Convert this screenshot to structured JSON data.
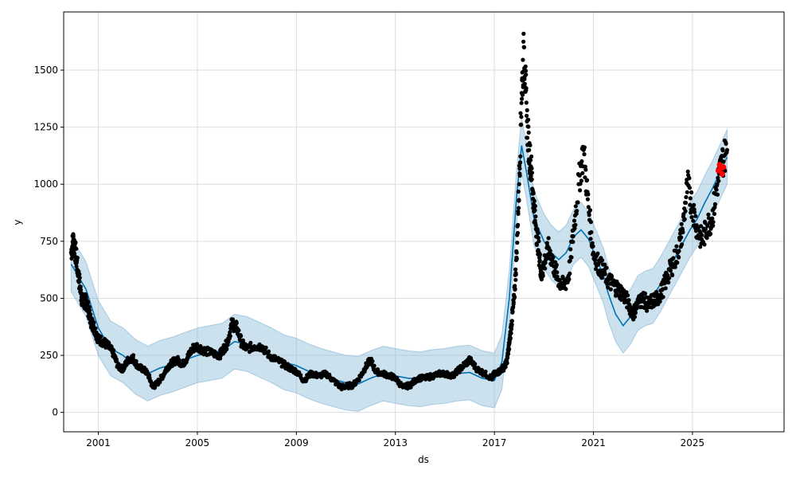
{
  "chart_data": {
    "type": "scatter",
    "xlabel": "ds",
    "ylabel": "y",
    "xlim": [
      1999.6,
      2028.7
    ],
    "ylim": [
      -85,
      1755
    ],
    "grid": true,
    "x_ticks": [
      2001,
      2005,
      2009,
      2013,
      2017,
      2021,
      2025
    ],
    "x_tick_labels": [
      "2001",
      "2005",
      "2009",
      "2013",
      "2017",
      "2021",
      "2025"
    ],
    "y_ticks": [
      0,
      250,
      500,
      750,
      1000,
      1250,
      1500
    ],
    "y_tick_labels": [
      "0",
      "250",
      "500",
      "750",
      "1000",
      "1250",
      "1500"
    ],
    "colors": {
      "observed": "#000000",
      "forecast_line": "#0072B2",
      "interval_fill": "#7FB3D5",
      "recent_points": "#FF0000",
      "grid": "#dddddd"
    },
    "series": [
      {
        "role": "observed",
        "x": [
          1999.9,
          2000.0,
          2000.1,
          2000.2,
          2000.3,
          2000.4,
          2000.5,
          2000.6,
          2000.7,
          2000.8,
          2000.9,
          2001.0,
          2001.2,
          2001.4,
          2001.6,
          2001.8,
          2002.0,
          2002.2,
          2002.4,
          2002.6,
          2002.8,
          2003.0,
          2003.2,
          2003.4,
          2003.6,
          2003.8,
          2004.0,
          2004.2,
          2004.4,
          2004.6,
          2004.8,
          2005.0,
          2005.3,
          2005.6,
          2005.9,
          2006.0,
          2006.2,
          2006.4,
          2006.6,
          2006.8,
          2007.0,
          2007.3,
          2007.6,
          2007.9,
          2008.2,
          2008.5,
          2008.8,
          2009.0,
          2009.3,
          2009.6,
          2009.9,
          2010.2,
          2010.5,
          2010.8,
          2011.0,
          2011.3,
          2011.6,
          2011.8,
          2012.0,
          2012.2,
          2012.5,
          2012.8,
          2013.0,
          2013.3,
          2013.6,
          2013.9,
          2014.2,
          2014.5,
          2014.8,
          2015.0,
          2015.3,
          2015.5,
          2015.8,
          2016.0,
          2016.3,
          2016.6,
          2016.9,
          2017.0,
          2017.2,
          2017.4,
          2017.5,
          2017.6,
          2017.7,
          2017.8,
          2017.9,
          2018.0,
          2018.1,
          2018.2,
          2018.3,
          2018.4,
          2018.5,
          2018.6,
          2018.7,
          2018.8,
          2018.9,
          2019.0,
          2019.2,
          2019.4,
          2019.6,
          2019.8,
          2020.0,
          2020.2,
          2020.4,
          2020.6,
          2020.8,
          2021.0,
          2021.2,
          2021.4,
          2021.6,
          2021.8,
          2022.0,
          2022.2,
          2022.4,
          2022.6,
          2022.8,
          2023.0,
          2023.2,
          2023.4,
          2023.6,
          2023.8,
          2024.0,
          2024.2,
          2024.4,
          2024.6,
          2024.8,
          2025.0,
          2025.2,
          2025.4,
          2025.6,
          2025.8,
          2026.0,
          2026.2,
          2026.4
        ],
        "y": [
          700,
          760,
          680,
          600,
          520,
          470,
          490,
          450,
          400,
          380,
          350,
          320,
          310,
          290,
          260,
          200,
          190,
          230,
          240,
          200,
          190,
          170,
          110,
          130,
          160,
          200,
          220,
          230,
          210,
          240,
          280,
          290,
          270,
          260,
          250,
          270,
          300,
          390,
          370,
          300,
          280,
          290,
          290,
          250,
          230,
          210,
          190,
          180,
          140,
          170,
          160,
          170,
          140,
          110,
          115,
          120,
          160,
          200,
          230,
          180,
          170,
          160,
          150,
          110,
          120,
          150,
          150,
          160,
          170,
          170,
          160,
          180,
          210,
          230,
          190,
          170,
          150,
          170,
          180,
          200,
          220,
          300,
          400,
          500,
          700,
          1000,
          1400,
          1600,
          1300,
          1150,
          1050,
          900,
          800,
          700,
          600,
          650,
          720,
          640,
          580,
          550,
          600,
          800,
          1000,
          1150,
          900,
          700,
          650,
          620,
          580,
          560,
          540,
          520,
          480,
          430,
          480,
          500,
          470,
          490,
          500,
          540,
          600,
          650,
          700,
          800,
          1000,
          900,
          800,
          750,
          820,
          850,
          1000,
          1100,
          1150
        ]
      },
      {
        "role": "forecast",
        "x": [
          1999.9,
          2000.5,
          2001.0,
          2001.5,
          2002.0,
          2002.5,
          2003.0,
          2003.5,
          2004.0,
          2004.5,
          2005.0,
          2005.5,
          2006.0,
          2006.5,
          2007.0,
          2007.5,
          2008.0,
          2008.5,
          2009.0,
          2009.5,
          2010.0,
          2010.5,
          2011.0,
          2011.5,
          2012.0,
          2012.5,
          2013.0,
          2013.5,
          2014.0,
          2014.5,
          2015.0,
          2015.5,
          2016.0,
          2016.5,
          2017.0,
          2017.3,
          2017.6,
          2017.9,
          2018.1,
          2018.3,
          2018.6,
          2019.0,
          2019.3,
          2019.6,
          2019.9,
          2020.2,
          2020.5,
          2020.8,
          2021.1,
          2021.4,
          2021.6,
          2021.9,
          2022.2,
          2022.5,
          2022.8,
          2023.1,
          2023.4,
          2023.7,
          2024.0,
          2024.3,
          2024.6,
          2024.9,
          2025.2,
          2025.5,
          2025.8,
          2026.1,
          2026.4
        ],
        "y": [
          650,
          540,
          370,
          280,
          250,
          200,
          170,
          195,
          210,
          230,
          250,
          260,
          270,
          310,
          300,
          275,
          250,
          220,
          205,
          180,
          160,
          145,
          130,
          125,
          150,
          170,
          160,
          150,
          145,
          155,
          160,
          170,
          175,
          150,
          140,
          220,
          500,
          950,
          1170,
          1050,
          850,
          750,
          700,
          670,
          700,
          770,
          800,
          760,
          680,
          600,
          520,
          430,
          380,
          420,
          480,
          500,
          510,
          560,
          620,
          680,
          740,
          800,
          850,
          920,
          980,
          1050,
          1120
        ]
      },
      {
        "role": "recent",
        "x": [
          2026.05,
          2026.1,
          2026.15,
          2026.2,
          2026.25
        ],
        "y": [
          1060,
          1085,
          1070,
          1045,
          1075
        ]
      }
    ],
    "interval_halfwidth": 120
  }
}
